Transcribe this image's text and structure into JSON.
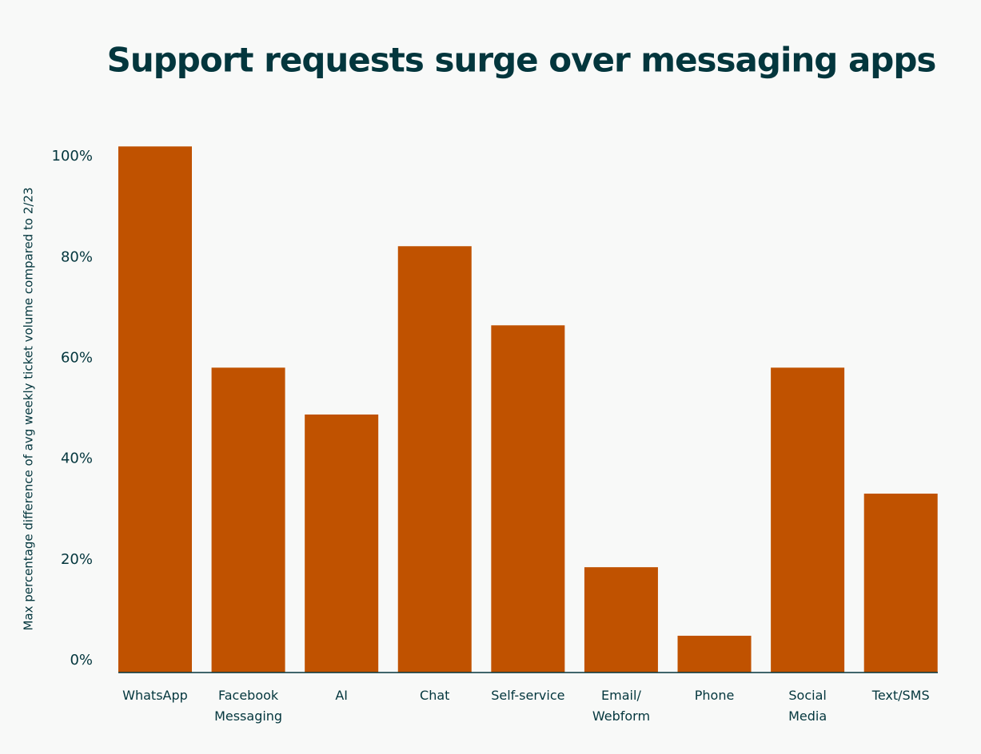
{
  "chart_data": {
    "type": "bar",
    "title": "Support requests surge over messaging apps",
    "y_label": "Max percentage difference of avg weekly ticket volume compared to 2/23",
    "categories": [
      "WhatsApp",
      "Facebook\nMessaging",
      "AI",
      "Chat",
      "Self-service",
      "Email/\nWebform",
      "Phone",
      "Social\nMedia",
      "Text/SMS"
    ],
    "values": [
      104.4,
      60.5,
      51.2,
      84.6,
      68.9,
      20.9,
      7.3,
      60.5,
      35.5
    ],
    "color": "#c05200",
    "ylim": [
      0,
      110
    ],
    "yticks": [
      {
        "value": 0,
        "label": "0%"
      },
      {
        "value": 20,
        "label": "20%"
      },
      {
        "value": 40,
        "label": "40%"
      },
      {
        "value": 60,
        "label": "60%"
      },
      {
        "value": 80,
        "label": "80%"
      },
      {
        "value": 100,
        "label": "100%"
      }
    ],
    "grid": false
  }
}
